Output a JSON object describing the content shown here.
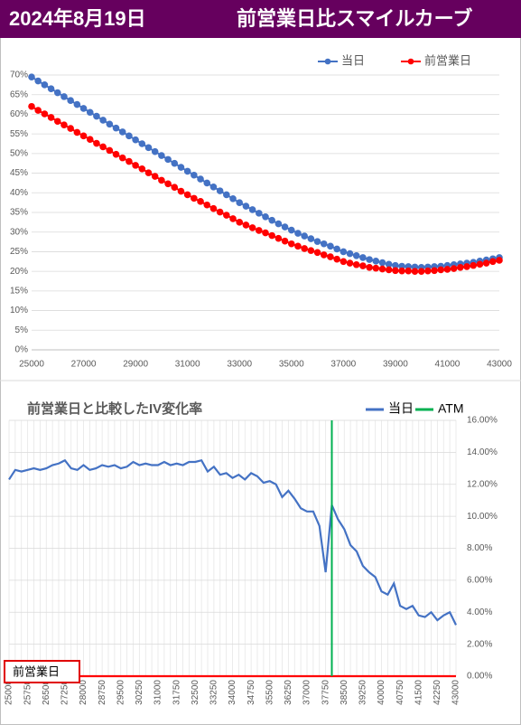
{
  "header": {
    "date": "2024年8月19日",
    "title": "前営業日比スマイルカーブ"
  },
  "chart_data": [
    {
      "type": "line",
      "markers": true,
      "grid": true,
      "legend": "top-right",
      "x": [
        25000,
        25250,
        25500,
        25750,
        26000,
        26250,
        26500,
        26750,
        27000,
        27250,
        27500,
        27750,
        28000,
        28250,
        28500,
        28750,
        29000,
        29250,
        29500,
        29750,
        30000,
        30250,
        30500,
        30750,
        31000,
        31250,
        31500,
        31750,
        32000,
        32250,
        32500,
        32750,
        33000,
        33250,
        33500,
        33750,
        34000,
        34250,
        34500,
        34750,
        35000,
        35250,
        35500,
        35750,
        36000,
        36250,
        36500,
        36750,
        37000,
        37250,
        37500,
        37750,
        38000,
        38250,
        38500,
        38750,
        39000,
        39250,
        39500,
        39750,
        40000,
        40250,
        40500,
        40750,
        41000,
        41250,
        41500,
        41750,
        42000,
        42250,
        42500,
        42750,
        43000
      ],
      "series": [
        {
          "name": "当日",
          "color": "#4472c4",
          "values": [
            69.5,
            68.5,
            67.5,
            66.5,
            65.5,
            64.5,
            63.5,
            62.5,
            61.5,
            60.5,
            59.5,
            58.5,
            57.5,
            56.5,
            55.5,
            54.5,
            53.5,
            52.5,
            51.5,
            50.5,
            49.5,
            48.5,
            47.5,
            46.5,
            45.5,
            44.5,
            43.5,
            42.5,
            41.5,
            40.5,
            39.5,
            38.5,
            37.5,
            36.6,
            35.7,
            34.8,
            33.9,
            33.0,
            32.1,
            31.3,
            30.5,
            29.7,
            29.0,
            28.3,
            27.6,
            27.0,
            26.4,
            25.7,
            25.0,
            24.5,
            24.0,
            23.5,
            23.0,
            22.6,
            22.2,
            21.8,
            21.5,
            21.3,
            21.2,
            21.1,
            21.0,
            21.1,
            21.2,
            21.3,
            21.5,
            21.7,
            21.9,
            22.1,
            22.3,
            22.6,
            22.9,
            23.2,
            23.5
          ]
        },
        {
          "name": "前営業日",
          "color": "#ff0000",
          "values": [
            62.0,
            61.0,
            60.1,
            59.2,
            58.2,
            57.3,
            56.4,
            55.4,
            54.5,
            53.6,
            52.6,
            51.7,
            50.8,
            49.8,
            48.9,
            48.0,
            47.0,
            46.1,
            45.1,
            44.2,
            43.2,
            42.3,
            41.4,
            40.4,
            39.5,
            38.6,
            37.8,
            36.9,
            36.0,
            35.1,
            34.3,
            33.4,
            32.5,
            31.8,
            31.1,
            30.4,
            29.8,
            29.1,
            28.4,
            27.7,
            27.0,
            26.4,
            25.8,
            25.3,
            24.8,
            24.2,
            23.7,
            23.1,
            22.5,
            22.1,
            21.7,
            21.4,
            21.0,
            20.8,
            20.6,
            20.4,
            20.2,
            20.1,
            20.1,
            20.0,
            20.0,
            20.1,
            20.2,
            20.4,
            20.5,
            20.7,
            21.0,
            21.2,
            21.5,
            21.8,
            22.1,
            22.5,
            22.8
          ]
        }
      ],
      "xlim": [
        25000,
        43000
      ],
      "xticks": [
        25000,
        27000,
        29000,
        31000,
        33000,
        35000,
        37000,
        39000,
        41000,
        43000
      ],
      "ylim": [
        0,
        70
      ],
      "yticks": [
        {
          "value": 0,
          "label": "0%"
        },
        {
          "value": 5,
          "label": "5%"
        },
        {
          "value": 10,
          "label": "10%"
        },
        {
          "value": 15,
          "label": "15%"
        },
        {
          "value": 20,
          "label": "20%"
        },
        {
          "value": 25,
          "label": "25%"
        },
        {
          "value": 30,
          "label": "30%"
        },
        {
          "value": 35,
          "label": "35%"
        },
        {
          "value": 40,
          "label": "40%"
        },
        {
          "value": 45,
          "label": "45%"
        },
        {
          "value": 50,
          "label": "50%"
        },
        {
          "value": 55,
          "label": "55%"
        },
        {
          "value": 60,
          "label": "60%"
        },
        {
          "value": 65,
          "label": "65%"
        },
        {
          "value": 70,
          "label": "70%"
        }
      ]
    },
    {
      "type": "line",
      "markers": false,
      "grid": true,
      "legend": "top",
      "yaxis_position": "right",
      "title": "前営業日と比較したIV変化率",
      "x": [
        25000,
        25250,
        25500,
        25750,
        26000,
        26250,
        26500,
        26750,
        27000,
        27250,
        27500,
        27750,
        28000,
        28250,
        28500,
        28750,
        29000,
        29250,
        29500,
        29750,
        30000,
        30250,
        30500,
        30750,
        31000,
        31250,
        31500,
        31750,
        32000,
        32250,
        32500,
        32750,
        33000,
        33250,
        33500,
        33750,
        34000,
        34250,
        34500,
        34750,
        35000,
        35250,
        35500,
        35750,
        36000,
        36250,
        36500,
        36750,
        37000,
        37250,
        37500,
        37750,
        38000,
        38250,
        38500,
        38750,
        39000,
        39250,
        39500,
        39750,
        40000,
        40250,
        40500,
        40750,
        41000,
        41250,
        41500,
        41750,
        42000,
        42250,
        42500,
        42750,
        43000
      ],
      "series": [
        {
          "name": "当日",
          "color": "#4472c4",
          "values": [
            12.3,
            12.9,
            12.8,
            12.9,
            13.0,
            12.9,
            13.0,
            13.2,
            13.3,
            13.5,
            13.0,
            12.9,
            13.2,
            12.9,
            13.0,
            13.2,
            13.1,
            13.2,
            13.0,
            13.1,
            13.4,
            13.2,
            13.3,
            13.2,
            13.2,
            13.4,
            13.2,
            13.3,
            13.2,
            13.4,
            13.4,
            13.5,
            12.8,
            13.1,
            12.6,
            12.7,
            12.4,
            12.6,
            12.3,
            12.7,
            12.5,
            12.1,
            12.2,
            12.0,
            11.2,
            11.6,
            11.1,
            10.5,
            10.3,
            10.3,
            9.4,
            6.5,
            10.7,
            9.8,
            9.2,
            8.2,
            7.8,
            6.9,
            6.5,
            6.2,
            5.3,
            5.1,
            5.8,
            4.4,
            4.2,
            4.4,
            3.8,
            3.7,
            4.0,
            3.5,
            3.8,
            4.0,
            3.2
          ]
        },
        {
          "name": "前営業日",
          "color": "#ff0000",
          "values": [
            0,
            0,
            0,
            0,
            0,
            0,
            0,
            0,
            0,
            0,
            0,
            0,
            0,
            0,
            0,
            0,
            0,
            0,
            0,
            0,
            0,
            0,
            0,
            0,
            0,
            0,
            0,
            0,
            0,
            0,
            0,
            0,
            0,
            0,
            0,
            0,
            0,
            0,
            0,
            0,
            0,
            0,
            0,
            0,
            0,
            0,
            0,
            0,
            0,
            0,
            0,
            0,
            0,
            0,
            0,
            0,
            0,
            0,
            0,
            0,
            0,
            0,
            0,
            0,
            0,
            0,
            0,
            0,
            0,
            0,
            0,
            0,
            0
          ]
        },
        {
          "name": "ATM",
          "color": "#00b050",
          "x": 38000
        }
      ],
      "xlim": [
        25000,
        43000
      ],
      "xticks": [
        25000,
        25750,
        26500,
        27250,
        28000,
        28750,
        29500,
        30250,
        31000,
        31750,
        32500,
        33250,
        34000,
        34750,
        35500,
        36250,
        37000,
        37750,
        38500,
        39250,
        40000,
        40750,
        41500,
        42250,
        43000
      ],
      "ylim": [
        0,
        16
      ],
      "yticks": [
        {
          "value": 0,
          "label": "0.00%"
        },
        {
          "value": 2,
          "label": "2.00%"
        },
        {
          "value": 4,
          "label": "4.00%"
        },
        {
          "value": 6,
          "label": "6.00%"
        },
        {
          "value": 8,
          "label": "8.00%"
        },
        {
          "value": 10,
          "label": "10.00%"
        },
        {
          "value": 12,
          "label": "12.00%"
        },
        {
          "value": 14,
          "label": "14.00%"
        },
        {
          "value": 16,
          "label": "16.00%"
        }
      ]
    }
  ]
}
